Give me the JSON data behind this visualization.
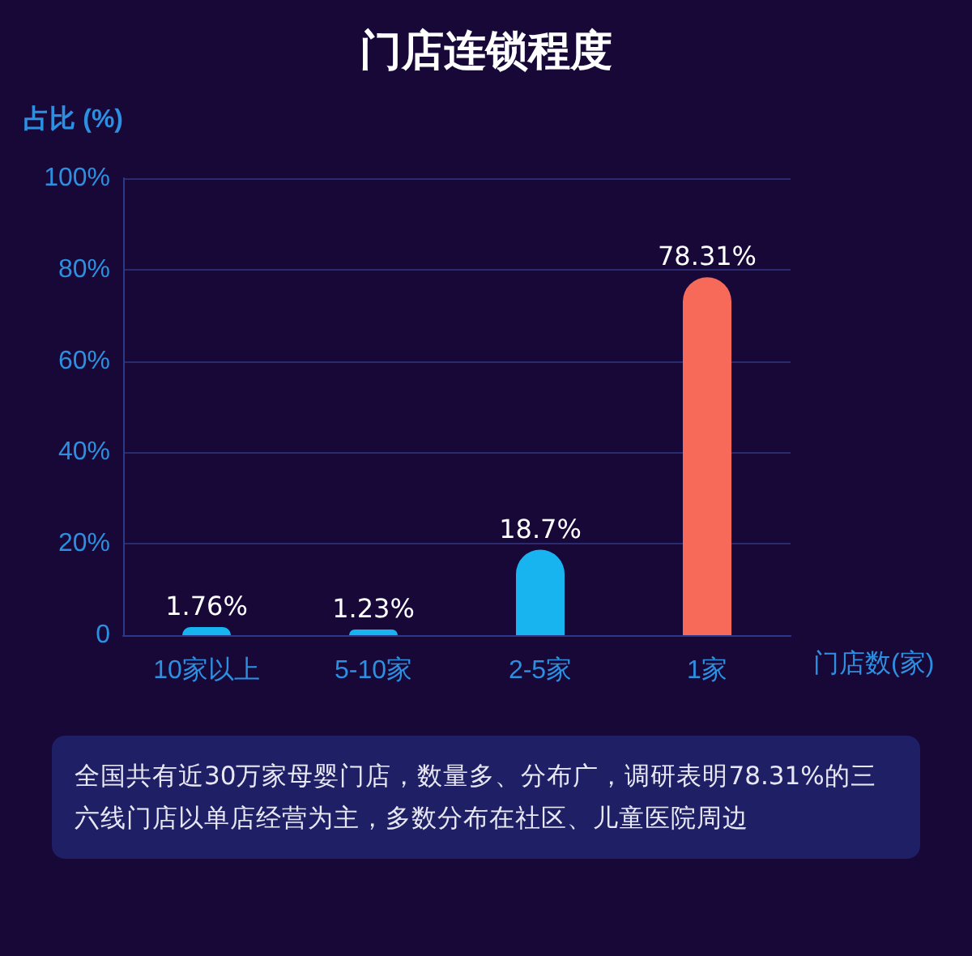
{
  "chart_data": {
    "type": "bar",
    "title": "门店连锁程度",
    "ylabel": "占比 (%)",
    "xlabel": "门店数(家)",
    "categories": [
      "10家以上",
      "5-10家",
      "2-5家",
      "1家"
    ],
    "values": [
      1.76,
      1.23,
      18.7,
      78.31
    ],
    "colors": [
      "#18b4f0",
      "#18b4f0",
      "#18b4f0",
      "#f76a5a"
    ],
    "value_labels": [
      "1.76%",
      "1.23%",
      "18.7%",
      "78.31%"
    ],
    "ylim": [
      0,
      100
    ],
    "yticks": [
      {
        "value": 0,
        "label": "0"
      },
      {
        "value": 20,
        "label": "20%"
      },
      {
        "value": 40,
        "label": "40%"
      },
      {
        "value": 60,
        "label": "60%"
      },
      {
        "value": 80,
        "label": "80%"
      },
      {
        "value": 100,
        "label": "100%"
      }
    ],
    "grid": "y",
    "annotations": [
      "全国共有近30万家母婴门店，数量多、分布广，调研表明78.31%的三六线门店以单店经营为主，多数分布在社区、儿童医院周边"
    ]
  }
}
